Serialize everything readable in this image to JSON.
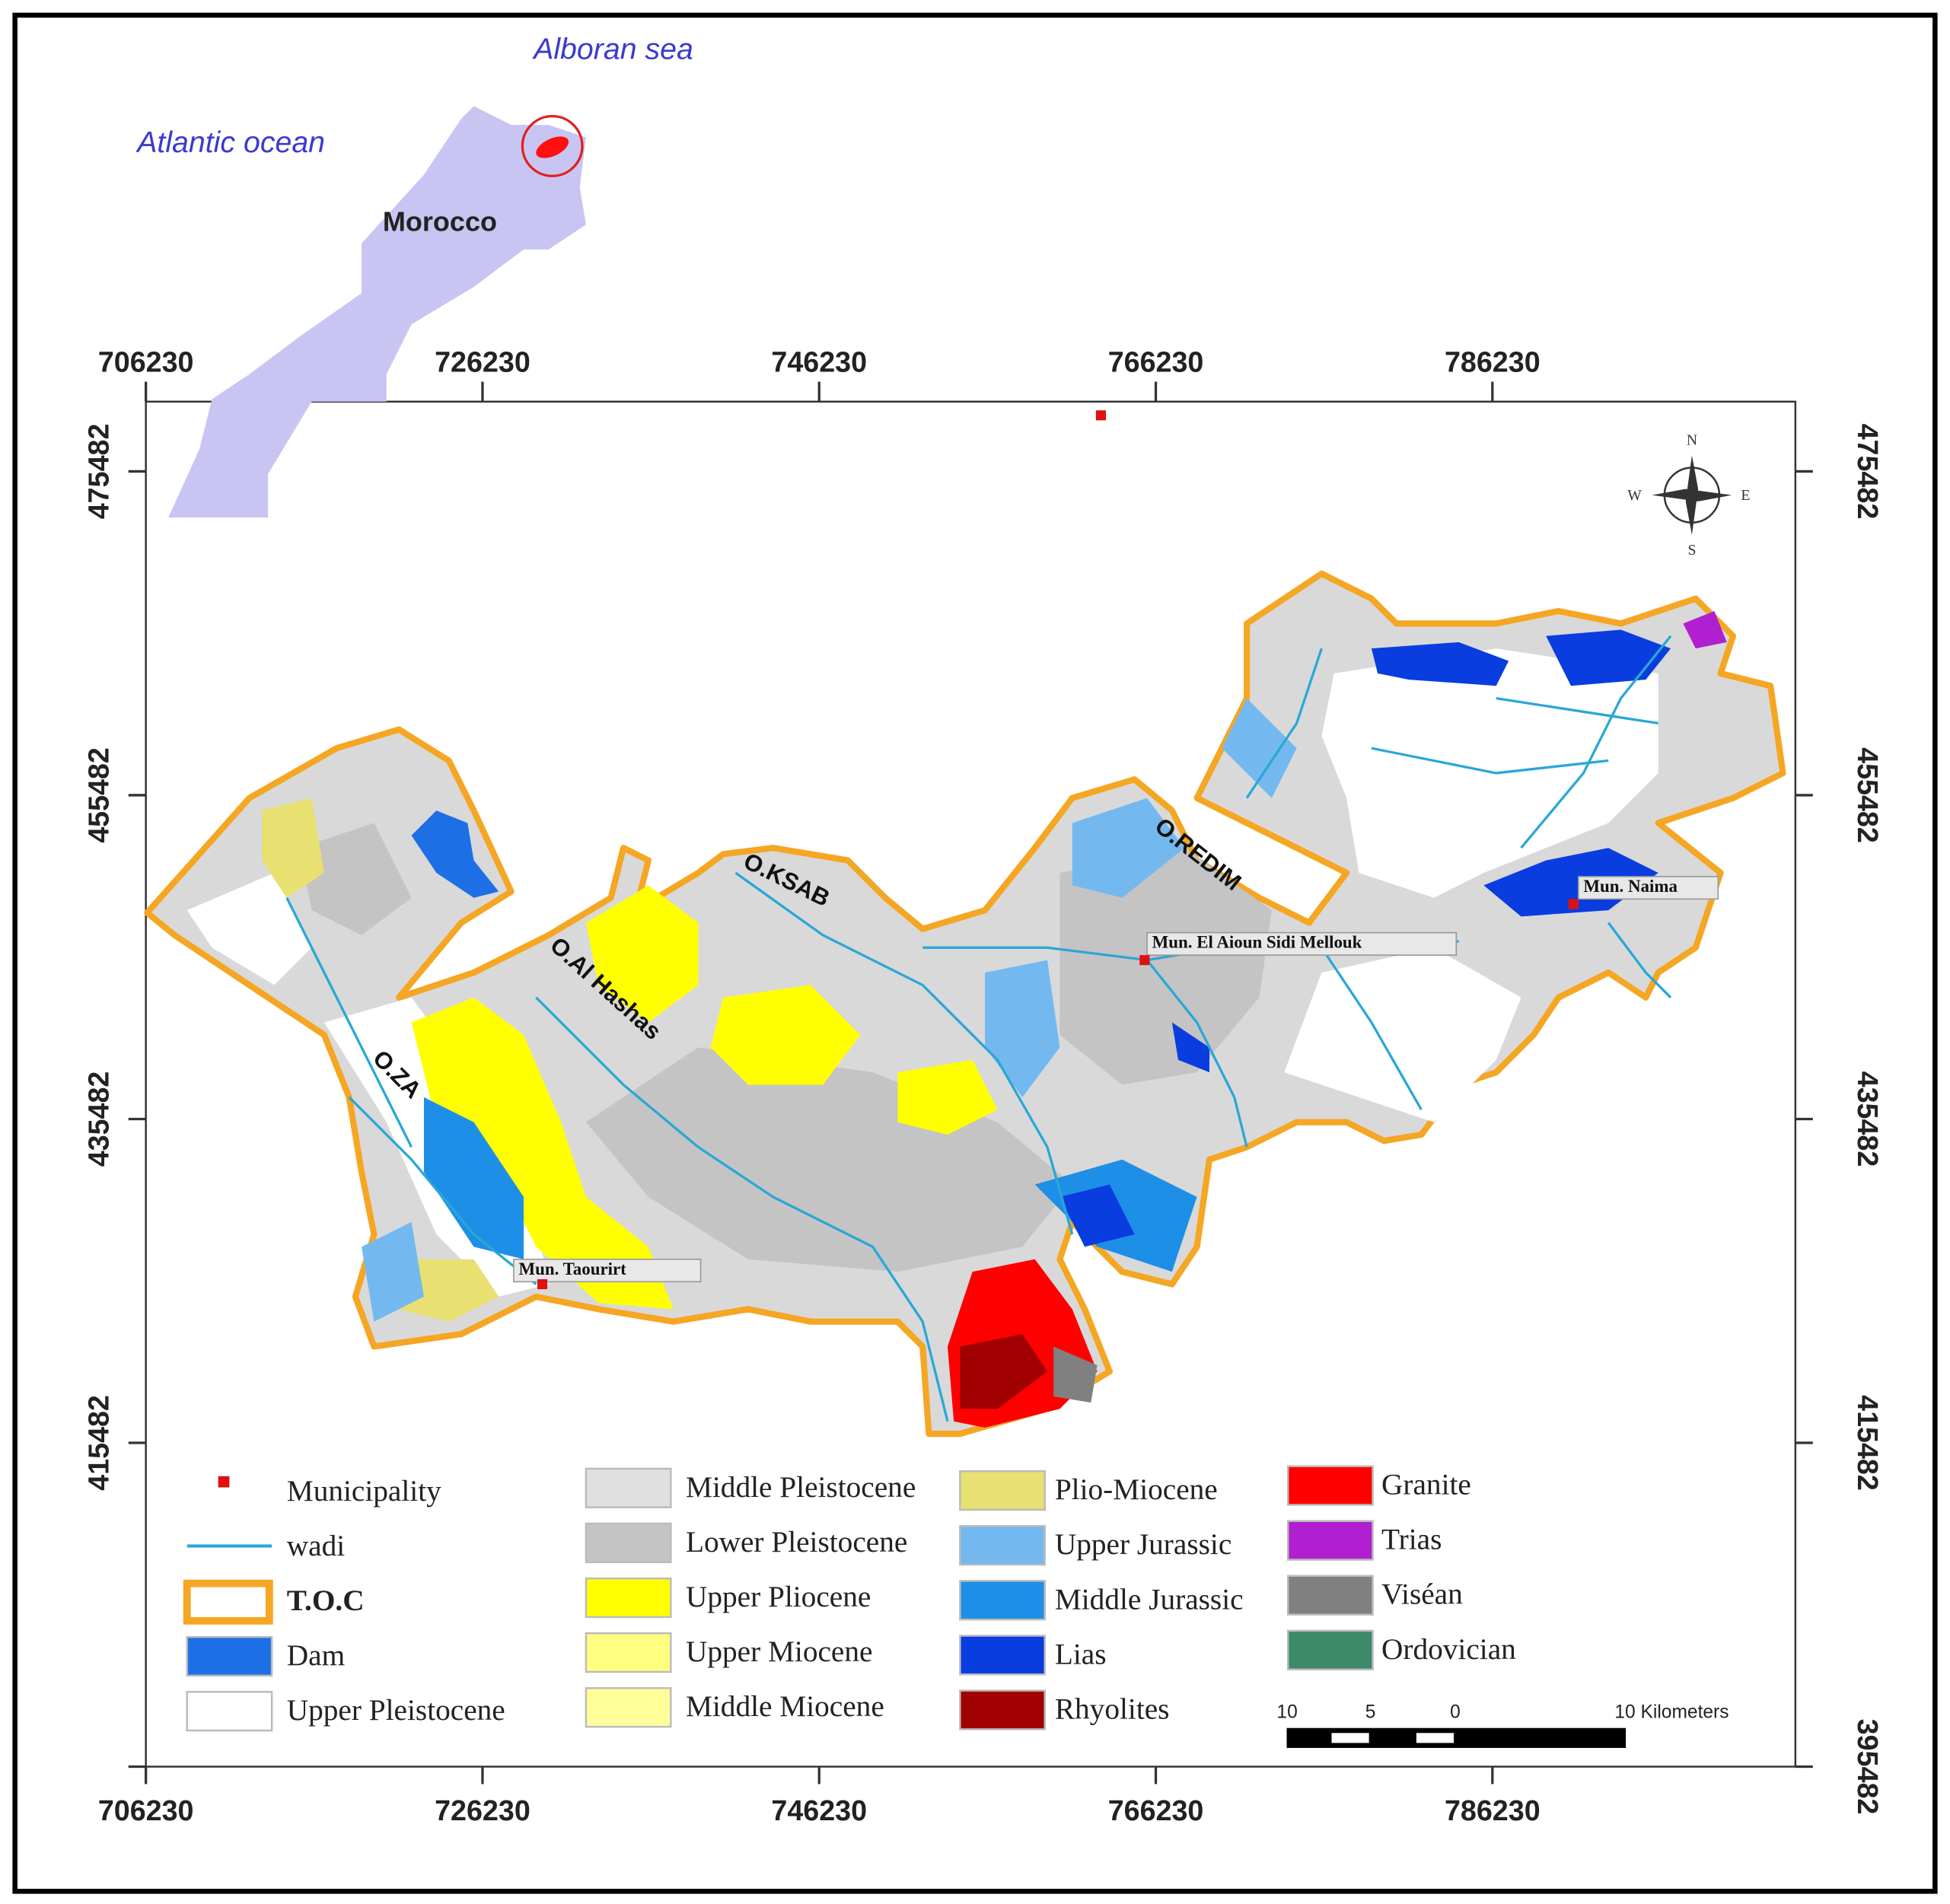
{
  "inset": {
    "sea_label": "Alboran sea",
    "ocean_label": "Atlantic ocean",
    "country_label": "Morocco"
  },
  "grid": {
    "xlim": [
      706230,
      804230
    ],
    "ylim": [
      395482,
      479790
    ],
    "xticks": [
      706230,
      726230,
      746230,
      766230,
      786230
    ],
    "yticks": [
      475482,
      455482,
      435482,
      415482,
      395482
    ]
  },
  "compass": {
    "n": "N",
    "s": "S",
    "e": "E",
    "w": "W"
  },
  "wadis": [
    "O.ZA",
    "O.Al Hashas",
    "O.KSAB",
    "O.REDIM"
  ],
  "municipalities": [
    "Mun. Taourirt",
    "Mun. El Aioun Sidi Mellouk",
    "Mun. Naima"
  ],
  "legend": [
    {
      "label": "Municipality",
      "color": "#e01010",
      "symbol": "point"
    },
    {
      "label": "wadi",
      "color": "#2aa7d6",
      "symbol": "line"
    },
    {
      "label": "T.O.C",
      "color": "#f5a623",
      "symbol": "outline"
    },
    {
      "label": "Dam",
      "color": "#1e6fe6",
      "symbol": "fill"
    },
    {
      "label": "Upper Pleistocene",
      "color": "#ffffff",
      "symbol": "fill"
    },
    {
      "label": "Middle Pleistocene",
      "color": "#e0e0e0",
      "symbol": "fill"
    },
    {
      "label": "Lower Pleistocene",
      "color": "#c4c4c4",
      "symbol": "fill"
    },
    {
      "label": "Upper Pliocene",
      "color": "#ffff00",
      "symbol": "fill"
    },
    {
      "label": "Upper Miocene",
      "color": "#ffff80",
      "symbol": "fill"
    },
    {
      "label": "Middle Miocene",
      "color": "#ffff99",
      "symbol": "fill"
    },
    {
      "label": "Plio-Miocene",
      "color": "#e8e070",
      "symbol": "fill"
    },
    {
      "label": "Upper Jurassic",
      "color": "#73b9f0",
      "symbol": "fill"
    },
    {
      "label": "Middle Jurassic",
      "color": "#1e8fe6",
      "symbol": "fill"
    },
    {
      "label": "Lias",
      "color": "#0a3de0",
      "symbol": "fill"
    },
    {
      "label": "Rhyolites",
      "color": "#a00000",
      "symbol": "fill"
    },
    {
      "label": "Granite",
      "color": "#ff0000",
      "symbol": "fill"
    },
    {
      "label": "Trias",
      "color": "#b020d0",
      "symbol": "fill"
    },
    {
      "label": "Viséan",
      "color": "#808080",
      "symbol": "fill"
    },
    {
      "label": "Ordovician",
      "color": "#3c8a6a",
      "symbol": "fill"
    }
  ],
  "scale_bar": {
    "labels": [
      "10",
      "5",
      "0",
      "10 Kilometers"
    ]
  }
}
